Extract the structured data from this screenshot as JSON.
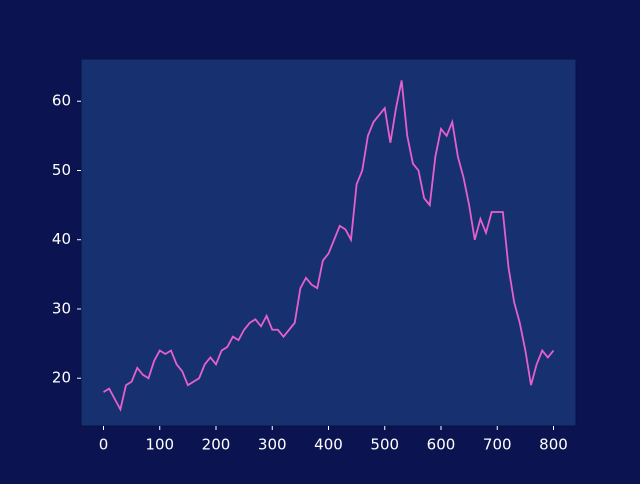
{
  "chart_data": {
    "type": "line",
    "x": [
      0,
      10,
      20,
      30,
      40,
      50,
      60,
      70,
      80,
      90,
      100,
      110,
      120,
      130,
      140,
      150,
      160,
      170,
      180,
      190,
      200,
      210,
      220,
      230,
      240,
      250,
      260,
      270,
      280,
      290,
      300,
      310,
      320,
      330,
      340,
      350,
      360,
      370,
      380,
      390,
      400,
      410,
      420,
      430,
      440,
      450,
      460,
      470,
      480,
      490,
      500,
      510,
      520,
      530,
      540,
      550,
      560,
      570,
      580,
      590,
      600,
      610,
      620,
      630,
      640,
      650,
      660,
      670,
      680,
      690,
      700,
      710,
      720,
      730,
      740,
      750,
      760,
      770,
      780,
      790,
      800
    ],
    "series": [
      {
        "color": "#e660cc",
        "values": [
          18,
          18.5,
          17,
          15.5,
          19,
          19.5,
          21.5,
          20.5,
          20,
          22.5,
          24,
          23.5,
          24,
          22,
          21,
          19,
          19.5,
          20,
          22,
          23,
          22,
          24,
          24.5,
          26,
          25.5,
          27,
          28,
          28.5,
          27.5,
          29,
          27,
          27,
          26,
          27,
          28,
          33,
          34.5,
          33.5,
          33,
          37,
          38,
          40,
          42,
          41.5,
          40,
          48,
          50,
          55,
          57,
          58,
          59,
          54,
          59,
          63,
          55,
          51,
          50,
          46,
          45,
          52,
          56,
          55,
          57,
          52,
          49,
          45,
          40,
          43,
          41,
          44,
          44,
          44,
          36,
          31,
          28,
          24,
          19,
          22,
          24,
          23,
          24
        ]
      }
    ],
    "xlim": [
      -40,
      840
    ],
    "ylim": [
      13.1,
      66.1
    ],
    "xticks": [
      0,
      100,
      200,
      300,
      400,
      500,
      600,
      700,
      800
    ],
    "yticks": [
      20,
      30,
      40,
      50,
      60
    ],
    "grid": false
  }
}
